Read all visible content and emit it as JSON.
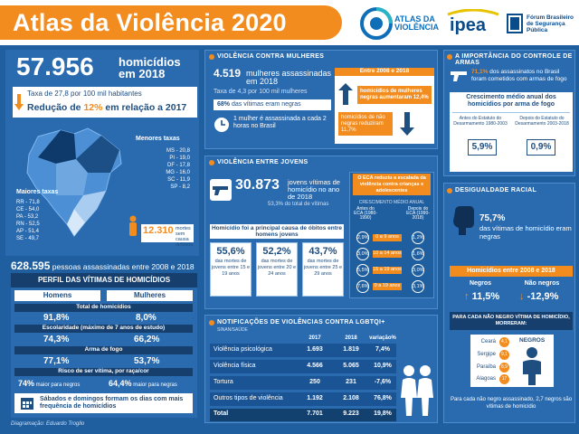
{
  "header": {
    "title_prefix": "Atlas da ",
    "title_emph": "Violência 2020",
    "logos": {
      "atlas": "ATLAS DA VIOLÊNCIA",
      "ipea": "ipea",
      "forum": "Fórum Brasileiro de Segurança Pública"
    }
  },
  "left": {
    "homicides_number": "57.956",
    "homicides_label": "homicídios em 2018",
    "rate_text": "Taxa de 27,8 por 100 mil habitantes",
    "reduction_prefix": "Redução de ",
    "reduction_value": "12%",
    "reduction_suffix": " em relação a 2017",
    "lower_title": "Menores taxas",
    "lower_rates": [
      "MS - 20,8",
      "PI - 19,0",
      "DF - 17,8",
      "MG - 16,0",
      "SC - 11,9",
      "SP - 8,2"
    ],
    "higher_title": "Maiores taxas",
    "higher_rates": [
      "RR - 71,8",
      "CE - 54,0",
      "PA - 53,2",
      "RN - 52,5",
      "AP - 51,4",
      "SE - 49,7"
    ],
    "deaths_number": "12.310",
    "deaths_label": "mortes sem causa definida",
    "total_number": "628.595",
    "total_label": "pessoas assassinadas entre 2008 e 2018"
  },
  "profile": {
    "title": "PERFIL DAS VÍTIMAS DE HOMICÍDIOS",
    "col_men": "Homens",
    "col_women": "Mulheres",
    "rows": [
      {
        "label": "Total de homicídios",
        "men": "91,8%",
        "women": "8,0%"
      },
      {
        "label": "Escolaridade (máximo de 7 anos de estudo)",
        "men": "74,3%",
        "women": "66,2%"
      },
      {
        "label": "Arma de fogo",
        "men": "77,1%",
        "women": "53,7%"
      },
      {
        "label": "Risco de ser vítima, por raça/cor",
        "men": "74%",
        "women": "64,4%",
        "men_suffix": " maior para negros",
        "women_suffix": " maior para negras"
      }
    ],
    "weekend_text": "Sábados e domingos formam os dias com mais frequência de homicídios"
  },
  "credit": "Diagramação: Eduardo Troglio",
  "women": {
    "title": "VIOLÊNCIA CONTRA MULHERES",
    "number": "4.519",
    "label": "mulheres assassinadas em 2018",
    "rate": "Taxa de 4,3 por 100 mil mulheres",
    "black_pct": "68%",
    "black_label": "das vítimas eram negras",
    "every2h": "1 mulher é assassinada a cada 2 horas no Brasil",
    "period": "Entre 2008 e 2018",
    "up_text": "homicídios de mulheres negras aumentaram 12,4%",
    "down_text": "homicídios de não negras reduziram 11,7%"
  },
  "youth": {
    "title": "VIOLÊNCIA ENTRE JOVENS",
    "number": "30.873",
    "label": "jovens vítimas de homicídio no ano de 2018",
    "share": "53,3% do total de vítimas",
    "eca_text": "O ECA reduziu a escalada da violência contra crianças e adolescentes",
    "eca_sub": "CRESCIMENTO MÉDIO ANUAL",
    "eca_before": "Antes do ECA (1980-1990)",
    "eca_after": "Depois do ECA (1990-2018)",
    "eca_rows": [
      {
        "before": "2,9%",
        "label": "0 a 9 anos",
        "after": "1,2%"
      },
      {
        "before": "3,0%",
        "label": "10 a 14 anos",
        "after": "1,6%"
      },
      {
        "before": "5,5%",
        "label": "15 a 19 anos",
        "after": "3,0%"
      },
      {
        "before": "7,6%",
        "label": "0 a 19 anos",
        "after": "3,1%"
      }
    ],
    "cause_title": "Homicídio foi a principal causa de óbitos entre homens jovens",
    "stats": [
      {
        "pct": "55,6%",
        "text": "das mortes de jovens entre 15 e 19 anos"
      },
      {
        "pct": "52,2%",
        "text": "das mortes de jovens entre 20 e 24 anos"
      },
      {
        "pct": "43,7%",
        "text": "das mortes de jovens entre 25 e 29 anos"
      }
    ]
  },
  "lgbt": {
    "title": "NOTIFICAÇÕES DE VIOLÊNCIAS CONTRA LGBTQI+",
    "source": "SINAN/SAÚDE",
    "headers": [
      "2017",
      "2018",
      "variação%"
    ],
    "rows": [
      {
        "label": "Violência psicológica",
        "y2017": "1.693",
        "y2018": "1.819",
        "var": "7,4%"
      },
      {
        "label": "Violência física",
        "y2017": "4.566",
        "y2018": "5.065",
        "var": "10,9%"
      },
      {
        "label": "Tortura",
        "y2017": "250",
        "y2018": "231",
        "var": "-7,6%"
      },
      {
        "label": "Outros tipos de violência",
        "y2017": "1.192",
        "y2018": "2.108",
        "var": "76,8%"
      },
      {
        "label": "Total",
        "y2017": "7.701",
        "y2018": "9.223",
        "var": "19,8%"
      }
    ]
  },
  "arms": {
    "title": "A IMPORTÂNCIA DO CONTROLE DE ARMAS",
    "pct": "71,1%",
    "text": "dos assassinatos no Brasil foram cometidos com armas de fogo",
    "growth_title": "Crescimento médio anual dos homicídios por arma de fogo",
    "before_label": "Antes do Estatuto do Desarmamento 1980-2003",
    "after_label": "Depois do Estatuto do Desarmamento 2003-2018",
    "before_value": "5,9%",
    "after_value": "0,9%"
  },
  "race": {
    "title": "DESIGUALDADE RACIAL",
    "pct": "75,7%",
    "text": "das vítimas de homicídio eram negras",
    "period": "Homicídios entre 2008 e 2018",
    "black_label": "Negros",
    "nonblack_label": "Não negros",
    "black_value": "11,5%",
    "nonblack_value": "-12,9%",
    "ratio_title": "PARA CADA NÃO NEGRO VÍTIMA DE HOMICÍDIO, MORRERAM:",
    "ratio_header": "NEGROS",
    "states": [
      {
        "name": "Ceará",
        "value": "4,1"
      },
      {
        "name": "Sergipe",
        "value": "9,1"
      },
      {
        "name": "Paraíba",
        "value": "8,9"
      },
      {
        "name": "Alagoas",
        "value": "17"
      }
    ],
    "footer": "Para cada não negro assassinado, 2,7 negros são vítimas de homicídio"
  }
}
